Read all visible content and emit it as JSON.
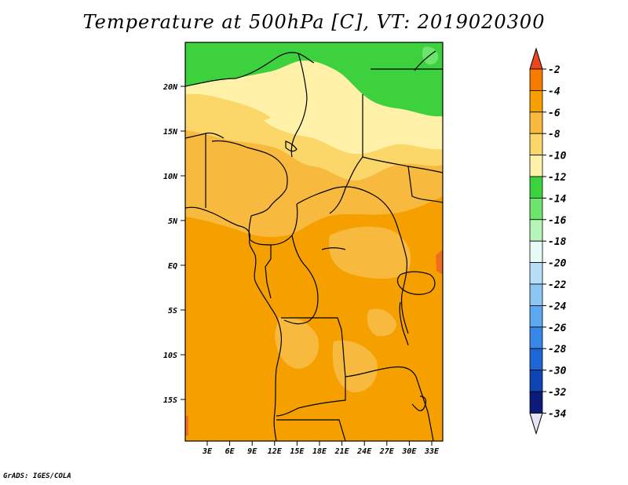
{
  "title": "Temperature at 500hPa [C], VT: 2019020300",
  "footer": "GrADS: IGES/COLA",
  "map": {
    "lat_ticks": [
      "20N",
      "15N",
      "10N",
      "5N",
      "EQ",
      "5S",
      "10S",
      "15S"
    ],
    "lon_ticks": [
      "3E",
      "6E",
      "9E",
      "12E",
      "15E",
      "18E",
      "21E",
      "24E",
      "27E",
      "30E",
      "33E"
    ],
    "dominant_field_colors": {
      "north_band": "#3dd13d",
      "light_yellow": "#fff2a8",
      "pale_orange": "#fbd76a",
      "orange_light": "#f8b93f",
      "orange": "#f6a000",
      "dark_orange": "#ee6e1c"
    }
  },
  "colorbar": {
    "labels": [
      "-2",
      "-4",
      "-6",
      "-8",
      "-10",
      "-12",
      "-14",
      "-16",
      "-18",
      "-20",
      "-22",
      "-24",
      "-26",
      "-28",
      "-30",
      "-32",
      "-34"
    ],
    "colors": [
      "#e8481c",
      "#f87b00",
      "#f6a000",
      "#f8b93f",
      "#fbd76a",
      "#fff2a8",
      "#3dd13d",
      "#6de56d",
      "#b7f4b7",
      "#e6fbf6",
      "#b8dff8",
      "#8cc6f5",
      "#5ea8f0",
      "#3687e8",
      "#1c66d6",
      "#0d45b4",
      "#0c1a7a"
    ],
    "top_cap_color": "#e8481c",
    "bottom_cap_color": "#e4e4f6"
  }
}
